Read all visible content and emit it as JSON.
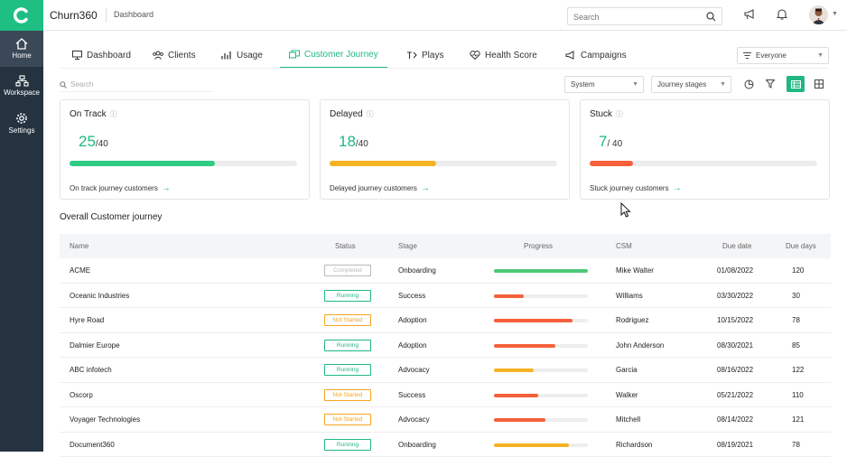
{
  "app": {
    "name": "Churn360",
    "breadcrumb": "Dashboard"
  },
  "sidebar": {
    "items": [
      {
        "label": "Home",
        "icon": "home-icon",
        "active": true
      },
      {
        "label": "Workspace",
        "icon": "workspace-icon",
        "active": false
      },
      {
        "label": "Settings",
        "icon": "gear-icon",
        "active": false
      }
    ]
  },
  "header": {
    "search_placeholder": "Search"
  },
  "tabs": [
    {
      "label": "Dashboard",
      "icon": "monitor-icon"
    },
    {
      "label": "Clients",
      "icon": "clients-icon"
    },
    {
      "label": "Usage",
      "icon": "usage-icon"
    },
    {
      "label": "Customer Journey",
      "icon": "journey-icon",
      "active": true
    },
    {
      "label": "Plays",
      "icon": "plays-icon"
    },
    {
      "label": "Health Score",
      "icon": "heart-icon"
    },
    {
      "label": "Campaigns",
      "icon": "megaphone-icon"
    }
  ],
  "audience_select": "Everyone",
  "filters": {
    "search_placeholder": "Search",
    "system_select": "System",
    "stages_select": "Journey stages"
  },
  "cards": [
    {
      "title": "On Track",
      "count": "25",
      "total": "/40",
      "progress": 0.64,
      "color": "#2ecc85",
      "link": "On track journey customers"
    },
    {
      "title": "Delayed",
      "count": "18",
      "total": "/40",
      "progress": 0.47,
      "color": "#f5b324",
      "link": "Delayed journey customers"
    },
    {
      "title": "Stuck",
      "count": "7",
      "total": "/ 40",
      "progress": 0.19,
      "color": "#f4603a",
      "link": "Stuck journey customers"
    }
  ],
  "section_title": "Overall Customer journey",
  "table": {
    "headers": [
      "Name",
      "Status",
      "Stage",
      "Progress",
      "CSM",
      "Due date",
      "Due days"
    ],
    "rows": [
      {
        "name": "ACME",
        "status": "Completed",
        "stage": "Onboarding",
        "progress": 1.0,
        "color": "#4cc878",
        "csm": "Mike Walter",
        "due": "01/08/2022",
        "days": "120"
      },
      {
        "name": "Oceanic Industries",
        "status": "Running",
        "stage": "Success",
        "progress": 0.32,
        "color": "#f4603a",
        "csm": "Williams",
        "due": "03/30/2022",
        "days": "30"
      },
      {
        "name": "Hyre Road",
        "status": "Not Started",
        "stage": "Adoption",
        "progress": 0.84,
        "color": "#f4603a",
        "csm": "Rodriguez",
        "due": "10/15/2022",
        "days": "78"
      },
      {
        "name": "Dalmier Europe",
        "status": "Running",
        "stage": "Adoption",
        "progress": 0.65,
        "color": "#f4603a",
        "csm": "John Anderson",
        "due": "08/30/2021",
        "days": "85"
      },
      {
        "name": "ABC infotech",
        "status": "Running",
        "stage": "Advocacy",
        "progress": 0.42,
        "color": "#f5b324",
        "csm": "Garcia",
        "due": "08/16/2022",
        "days": "122"
      },
      {
        "name": "Oscorp",
        "status": "Not Started",
        "stage": "Success",
        "progress": 0.47,
        "color": "#f4603a",
        "csm": "Walker",
        "due": "05/21/2022",
        "days": "110"
      },
      {
        "name": "Voyager Technologies",
        "status": "Not Started",
        "stage": "Advocacy",
        "progress": 0.55,
        "color": "#f4603a",
        "csm": "Mitchell",
        "due": "08/14/2022",
        "days": "121"
      },
      {
        "name": "Document360",
        "status": "Running",
        "stage": "Onboarding",
        "progress": 0.8,
        "color": "#f5b324",
        "csm": "Richardson",
        "due": "08/19/2021",
        "days": "78"
      }
    ]
  },
  "status_colors": {
    "Completed": "#b9b9b9",
    "Running": "#20b880",
    "Not Started": "#f5a623"
  }
}
